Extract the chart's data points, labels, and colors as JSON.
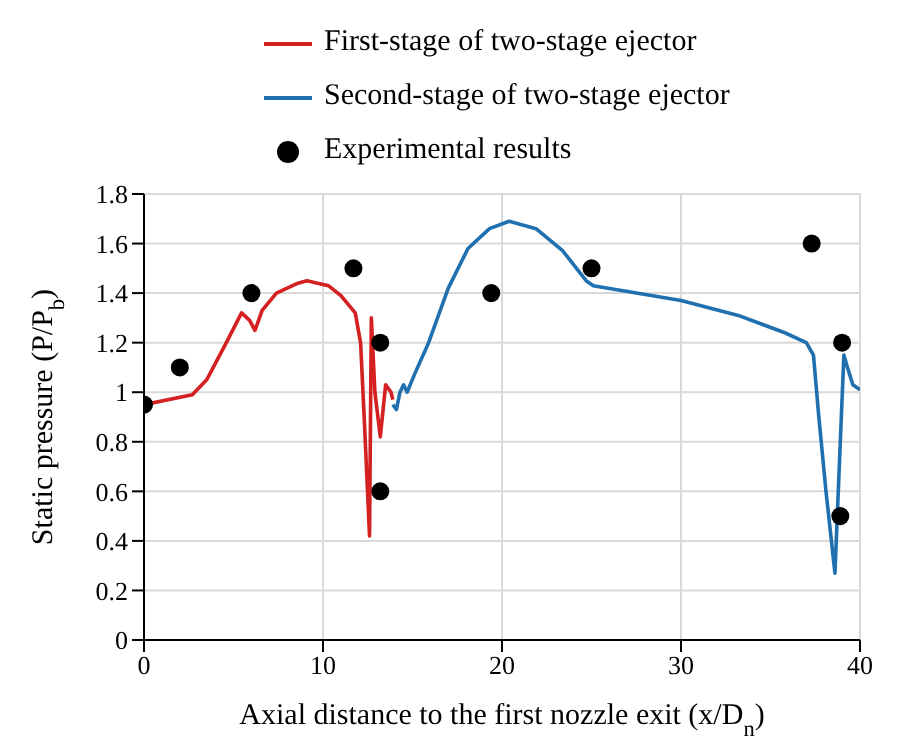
{
  "chart_data": {
    "type": "line",
    "xlabel": "Axial distance to the first nozzle exit (x/D$_{n}$)",
    "ylabel": "Static pressure (P/P$_{b}$)",
    "xlim": [
      0,
      40
    ],
    "xticks": [
      0,
      10,
      20,
      30,
      40
    ],
    "ylim": [
      0,
      1.8
    ],
    "yticks": [
      0,
      0.2,
      0.4,
      0.6,
      0.8,
      1,
      1.2,
      1.4,
      1.6,
      1.8
    ],
    "grid": true,
    "legend": "top",
    "line_style": "solid",
    "series": [
      {
        "name": "First-stage of two-stage ejector",
        "color": "#d42020",
        "marker": "none",
        "x": [
          0,
          2.7,
          3.5,
          4.6,
          5.45,
          5.9,
          6.2,
          6.6,
          7.4,
          8.6,
          9.1,
          10.3,
          11,
          11.8,
          12.1,
          12.3,
          12.6,
          12.7,
          12.9,
          13.2,
          13.5,
          13.8,
          13.9
        ],
        "values": [
          0.95,
          0.99,
          1.05,
          1.2,
          1.32,
          1.29,
          1.25,
          1.33,
          1.4,
          1.44,
          1.45,
          1.43,
          1.39,
          1.32,
          1.2,
          0.9,
          0.42,
          1.3,
          1,
          0.82,
          1.03,
          1,
          0.97
        ]
      },
      {
        "name": "Second-stage of two-stage ejector",
        "color": "#2070b0",
        "marker": "none",
        "x": [
          13.9,
          14.1,
          14.3,
          14.5,
          14.7,
          15.1,
          15.9,
          17,
          18.1,
          19.3,
          20.4,
          21.9,
          23.4,
          24.7,
          25.1,
          30,
          33.2,
          35.8,
          37,
          37.4,
          37.7,
          38.1,
          38.6,
          38.9,
          39.1,
          39.3,
          39.6,
          40
        ],
        "values": [
          0.95,
          0.93,
          1,
          1.03,
          1,
          1.07,
          1.2,
          1.42,
          1.58,
          1.66,
          1.69,
          1.66,
          1.57,
          1.45,
          1.43,
          1.37,
          1.31,
          1.24,
          1.2,
          1.15,
          0.9,
          0.6,
          0.27,
          0.8,
          1.15,
          1.1,
          1.03,
          1.01
        ]
      },
      {
        "name": "Experimental results",
        "type": "scatter",
        "color": "#000000",
        "marker": "circle",
        "x": [
          0,
          2,
          6,
          11.7,
          13.2,
          13.2,
          19.4,
          25,
          37.3,
          39,
          38.9
        ],
        "values": [
          0.95,
          1.1,
          1.4,
          1.5,
          1.2,
          0.6,
          1.4,
          1.5,
          1.6,
          1.2,
          0.5
        ]
      }
    ]
  }
}
